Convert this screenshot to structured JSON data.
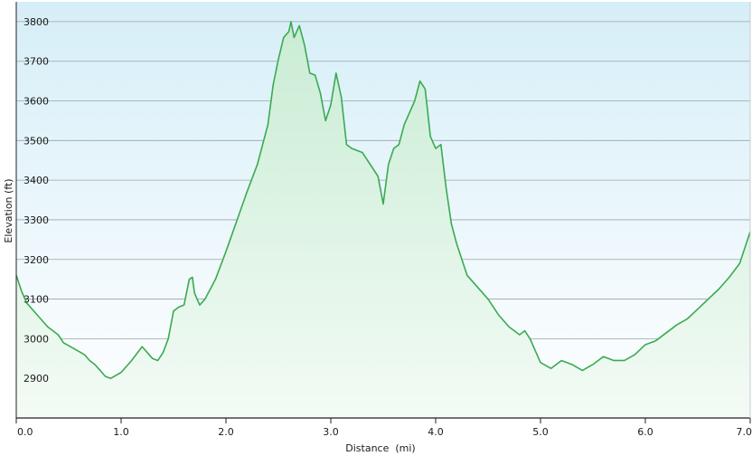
{
  "chart_data": {
    "type": "area",
    "xlabel": "Distance  (mi)",
    "ylabel": "Elevation (ft)",
    "xlim": [
      0,
      7
    ],
    "ylim": [
      2800,
      3850
    ],
    "x_ticks": [
      "0.0",
      "1.0",
      "2.0",
      "3.0",
      "4.0",
      "5.0",
      "6.0",
      "7.0"
    ],
    "y_ticks": [
      "2900",
      "3000",
      "3100",
      "3200",
      "3300",
      "3400",
      "3500",
      "3600",
      "3700",
      "3800"
    ],
    "grid": true,
    "legend": "none",
    "series": [
      {
        "x": [
          0.0,
          0.05,
          0.1,
          0.2,
          0.3,
          0.4,
          0.45,
          0.55,
          0.65,
          0.7,
          0.75,
          0.8,
          0.85,
          0.9,
          1.0,
          1.1,
          1.2,
          1.25,
          1.3,
          1.35,
          1.4,
          1.45,
          1.5,
          1.55,
          1.6,
          1.65,
          1.68,
          1.7,
          1.75,
          1.8,
          1.9,
          2.0,
          2.1,
          2.2,
          2.3,
          2.4,
          2.45,
          2.5,
          2.55,
          2.6,
          2.62,
          2.65,
          2.7,
          2.75,
          2.8,
          2.85,
          2.9,
          2.95,
          3.0,
          3.05,
          3.1,
          3.15,
          3.2,
          3.3,
          3.4,
          3.45,
          3.5,
          3.55,
          3.6,
          3.65,
          3.7,
          3.8,
          3.85,
          3.9,
          3.95,
          4.0,
          4.05,
          4.1,
          4.15,
          4.2,
          4.3,
          4.4,
          4.5,
          4.6,
          4.7,
          4.8,
          4.85,
          4.9,
          5.0,
          5.1,
          5.2,
          5.3,
          5.4,
          5.5,
          5.6,
          5.7,
          5.8,
          5.9,
          6.0,
          6.1,
          6.2,
          6.3,
          6.4,
          6.5,
          6.6,
          6.7,
          6.8,
          6.9,
          7.0
        ],
        "y": [
          3160,
          3120,
          3090,
          3060,
          3030,
          3010,
          2990,
          2975,
          2960,
          2945,
          2935,
          2920,
          2905,
          2900,
          2915,
          2945,
          2980,
          2965,
          2950,
          2945,
          2965,
          3000,
          3070,
          3080,
          3085,
          3150,
          3155,
          3115,
          3085,
          3100,
          3150,
          3220,
          3295,
          3370,
          3440,
          3540,
          3640,
          3705,
          3760,
          3775,
          3800,
          3760,
          3790,
          3740,
          3670,
          3665,
          3620,
          3550,
          3590,
          3670,
          3610,
          3490,
          3480,
          3470,
          3430,
          3410,
          3340,
          3440,
          3480,
          3490,
          3540,
          3600,
          3650,
          3630,
          3510,
          3480,
          3490,
          3380,
          3290,
          3240,
          3160,
          3130,
          3100,
          3060,
          3030,
          3010,
          3020,
          3000,
          2940,
          2925,
          2945,
          2935,
          2920,
          2935,
          2955,
          2945,
          2945,
          2960,
          2985,
          2995,
          3015,
          3035,
          3050,
          3075,
          3100,
          3125,
          3155,
          3190,
          3270
        ]
      }
    ],
    "colors": {
      "line": "#3aaa52",
      "fill_top": "#c9ecd4",
      "fill_bottom": "#f3fbf5",
      "bg_top": "#d6eef8",
      "bg_bottom": "#ffffff",
      "grid": "#9aa3aa",
      "axis": "#222222"
    }
  }
}
